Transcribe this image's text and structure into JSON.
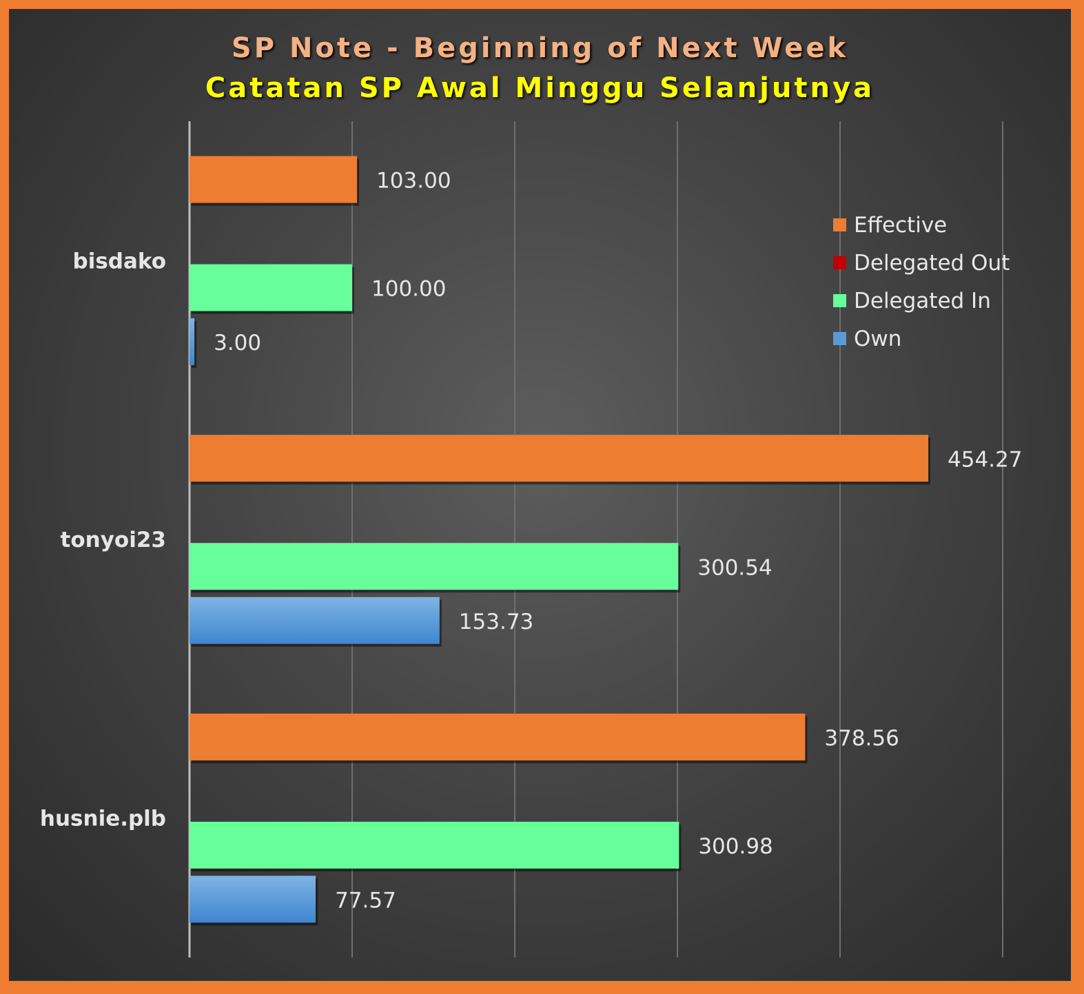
{
  "title": "SP Note - Beginning of Next Week",
  "subtitle": "Catatan SP Awal Minggu Selanjutnya",
  "legend": [
    {
      "label": "Effective",
      "color": "#ed7d31"
    },
    {
      "label": "Delegated Out",
      "color": "#c00000"
    },
    {
      "label": "Delegated In",
      "color": "#66ff99"
    },
    {
      "label": "Own",
      "color": "#5b9bd5"
    }
  ],
  "chart_data": {
    "type": "bar",
    "orientation": "horizontal",
    "categories": [
      "bisdako",
      "tonyoi23",
      "husnie.plb"
    ],
    "series": [
      {
        "name": "Effective",
        "color": "#ed7d31",
        "values": [
          103.0,
          454.27,
          378.56
        ],
        "labels": [
          "103.00",
          "454.27",
          "378.56"
        ]
      },
      {
        "name": "Delegated Out",
        "color": "#c00000",
        "values": [
          0,
          0,
          0
        ],
        "labels": [
          "",
          "",
          ""
        ]
      },
      {
        "name": "Delegated In",
        "color": "#66ff99",
        "values": [
          100.0,
          300.54,
          300.98
        ],
        "labels": [
          "100.00",
          "300.54",
          "300.98"
        ]
      },
      {
        "name": "Own",
        "color": "#5b9bd5",
        "values": [
          3.0,
          153.73,
          77.57
        ],
        "labels": [
          "3.00",
          "153.73",
          "77.57"
        ]
      }
    ],
    "xlim": [
      0,
      500
    ],
    "grid": true,
    "legend_position": "right"
  }
}
